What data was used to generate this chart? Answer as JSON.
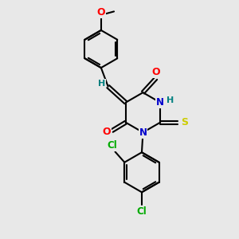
{
  "bg_color": "#e8e8e8",
  "bond_color": "#000000",
  "bond_width": 1.5,
  "atom_colors": {
    "O": "#ff0000",
    "N": "#0000cc",
    "S": "#cccc00",
    "Cl": "#00aa00",
    "H": "#008080",
    "C": "#000000"
  },
  "font_size": 8.5,
  "fig_size": [
    3.0,
    3.0
  ],
  "dpi": 100
}
